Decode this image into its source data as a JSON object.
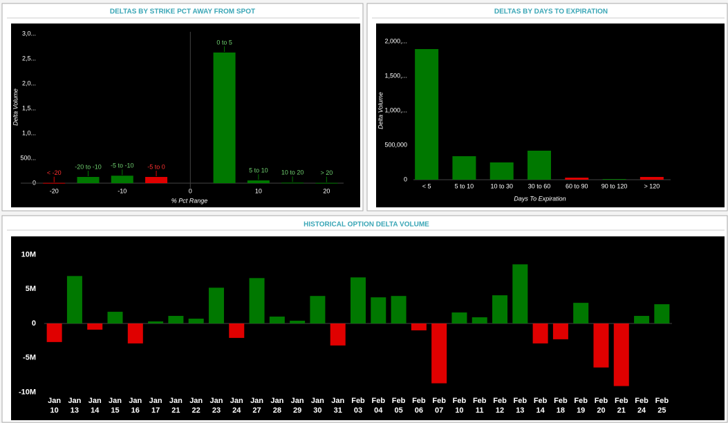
{
  "chart_data": [
    {
      "type": "bar",
      "title": "DELTAS BY STRIKE PCT AWAY FROM SPOT",
      "x_label": "% Pct Range",
      "y_label": "Delta Volume",
      "x": [
        -20,
        -15,
        -10,
        -5,
        5,
        10,
        15,
        20
      ],
      "categories": [
        "< -20",
        "-20 to -10",
        "-5 to -10",
        "-5 to 0",
        "0 to 5",
        "5 to 10",
        "10 to 20",
        "> 20"
      ],
      "values": [
        5000,
        125000,
        150000,
        125000,
        2625000,
        55000,
        10000,
        5000
      ],
      "colors": [
        "#e00000",
        "#007800",
        "#007800",
        "#e00000",
        "#007800",
        "#007800",
        "#007800",
        "#007800"
      ],
      "xlim": [
        -25,
        22.5
      ],
      "xticks": [
        -20,
        -10,
        0,
        10,
        20
      ],
      "ylim": [
        0,
        3100000
      ],
      "yticks": [
        0,
        {
          "value": 500000,
          "label": "500..."
        },
        {
          "value": 1000000,
          "label": "1,0..."
        },
        {
          "value": 1500000,
          "label": "1,5..."
        },
        {
          "value": 2000000,
          "label": "2,0..."
        },
        {
          "value": 2500000,
          "label": "2,5..."
        },
        {
          "value": 3000000,
          "label": "3,0..."
        }
      ],
      "zero_line": true
    },
    {
      "type": "bar",
      "title": "DELTAS BY DAYS TO EXPIRATION",
      "x_label": "Days To Expiration",
      "y_label": "Delta Volume",
      "categories": [
        "< 5",
        "5 to 10",
        "10 to 30",
        "30 to 60",
        "60 to 90",
        "90 to 120",
        "> 120"
      ],
      "values": [
        1890000,
        340000,
        250000,
        420000,
        30000,
        10000,
        40000
      ],
      "colors": [
        "#007800",
        "#007800",
        "#007800",
        "#007800",
        "#e00000",
        "#007800",
        "#e00000"
      ],
      "ylim": [
        0,
        2150000
      ],
      "yticks": [
        0,
        {
          "value": 500000,
          "label": "500,000"
        },
        {
          "value": 1000000,
          "label": "1,000,..."
        },
        {
          "value": 1500000,
          "label": "1,500,..."
        },
        {
          "value": 2000000,
          "label": "2,000,..."
        }
      ]
    },
    {
      "type": "bar",
      "title": "HISTORICAL OPTION DELTA VOLUME",
      "categories": [
        [
          "Jan",
          "10"
        ],
        [
          "Jan",
          "13"
        ],
        [
          "Jan",
          "14"
        ],
        [
          "Jan",
          "15"
        ],
        [
          "Jan",
          "16"
        ],
        [
          "Jan",
          "17"
        ],
        [
          "Jan",
          "21"
        ],
        [
          "Jan",
          "22"
        ],
        [
          "Jan",
          "23"
        ],
        [
          "Jan",
          "24"
        ],
        [
          "Jan",
          "27"
        ],
        [
          "Jan",
          "28"
        ],
        [
          "Jan",
          "29"
        ],
        [
          "Jan",
          "30"
        ],
        [
          "Jan",
          "31"
        ],
        [
          "Feb",
          "03"
        ],
        [
          "Feb",
          "04"
        ],
        [
          "Feb",
          "05"
        ],
        [
          "Feb",
          "06"
        ],
        [
          "Feb",
          "07"
        ],
        [
          "Feb",
          "10"
        ],
        [
          "Feb",
          "11"
        ],
        [
          "Feb",
          "12"
        ],
        [
          "Feb",
          "13"
        ],
        [
          "Feb",
          "14"
        ],
        [
          "Feb",
          "18"
        ],
        [
          "Feb",
          "19"
        ],
        [
          "Feb",
          "20"
        ],
        [
          "Feb",
          "21"
        ],
        [
          "Feb",
          "24"
        ],
        [
          "Feb",
          "25"
        ]
      ],
      "values": [
        -2700000,
        6900000,
        -900000,
        1700000,
        -2900000,
        300000,
        1100000,
        700000,
        5200000,
        -2100000,
        6600000,
        1000000,
        400000,
        4000000,
        -3200000,
        6700000,
        3800000,
        4000000,
        -1000000,
        -8700000,
        1600000,
        900000,
        4100000,
        8600000,
        -2900000,
        -2300000,
        3000000,
        -6400000,
        -9100000,
        1100000,
        2800000
      ],
      "positive_color": "#007800",
      "negative_color": "#e00000",
      "ylim": [
        -14000000,
        12500000
      ],
      "yticks": [
        {
          "value": -10000000,
          "label": "-10M"
        },
        {
          "value": -5000000,
          "label": "-5M"
        },
        0,
        {
          "value": 5000000,
          "label": "5M"
        },
        {
          "value": 10000000,
          "label": "10M"
        }
      ]
    }
  ]
}
